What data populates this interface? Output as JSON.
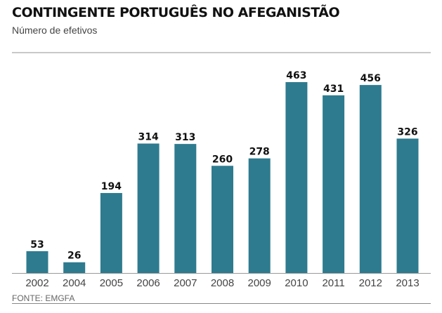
{
  "chart_data": {
    "type": "bar",
    "title": "CONTINGENTE  PORTUGUÊS NO AFEGANISTÃO",
    "subtitle": "Número de efetivos",
    "categories": [
      "2002",
      "2004",
      "2005",
      "2006",
      "2007",
      "2008",
      "2009",
      "2010",
      "2011",
      "2012",
      "2013"
    ],
    "values": [
      53,
      26,
      194,
      314,
      313,
      260,
      278,
      463,
      431,
      456,
      326
    ],
    "xlabel": "",
    "ylabel": "",
    "ylim": [
      0,
      463
    ],
    "grid": false,
    "source": "FONTE: EMGFA",
    "bar_color": "#2e7b8f"
  }
}
